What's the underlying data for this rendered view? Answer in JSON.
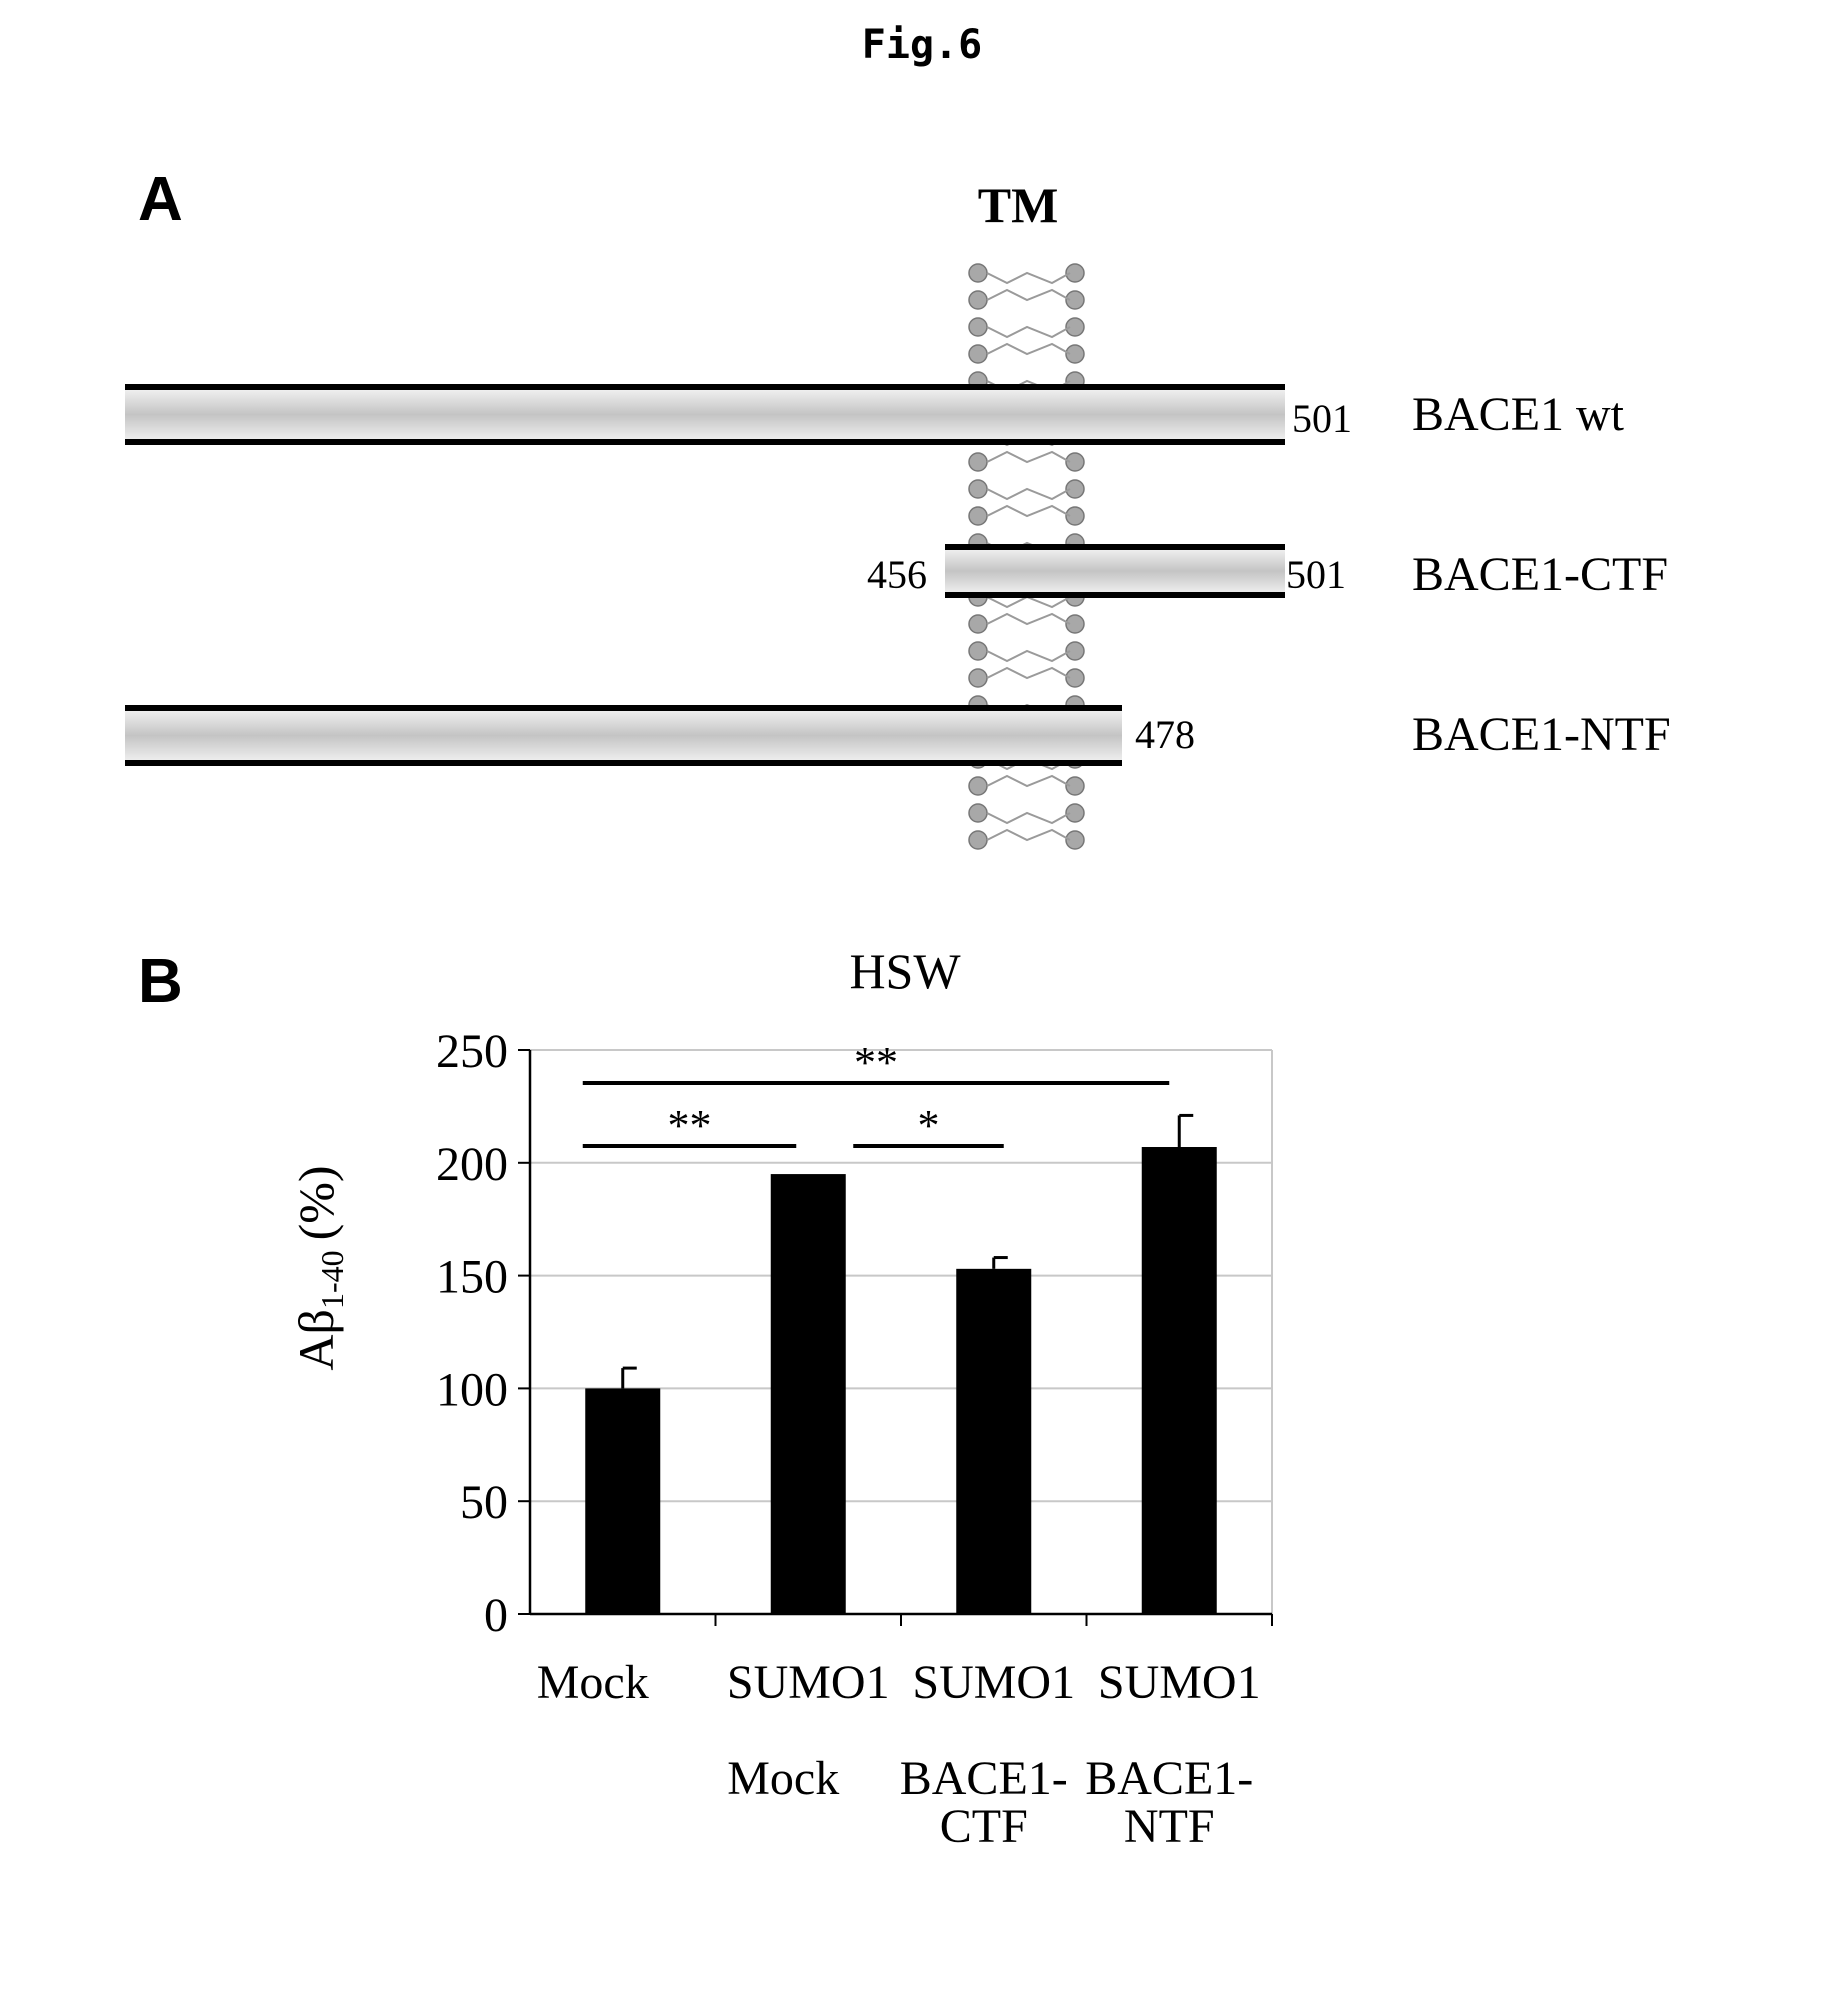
{
  "figure_title": "Fig.6",
  "panel_a": {
    "label": "A",
    "tm_label": "TM",
    "constructs": [
      {
        "name": "BACE1 wt",
        "start_label": "",
        "end_label": "501"
      },
      {
        "name": "BACE1-CTF",
        "start_label": "456",
        "end_label": "501"
      },
      {
        "name": "BACE1-NTF",
        "start_label": "",
        "end_label": "478"
      }
    ]
  },
  "panel_b": {
    "label": "B",
    "significance": [
      {
        "label": "**",
        "from": 0,
        "to": 1
      },
      {
        "label": "*",
        "from": 1,
        "to": 2
      },
      {
        "label": "**",
        "from": 0,
        "to": 3
      }
    ]
  },
  "chart_data": {
    "type": "bar",
    "title": "HSW",
    "ylabel_main": "Aβ",
    "ylabel_sub": "1-40",
    "ylabel_unit": "(%)",
    "xlabel": "",
    "categories": [
      [
        "Mock"
      ],
      [
        "SUMO1",
        "",
        "Mock"
      ],
      [
        "SUMO1",
        "",
        "BACE1-",
        "CTF"
      ],
      [
        "SUMO1",
        "",
        "BACE1-",
        "NTF"
      ]
    ],
    "values": [
      100,
      195,
      153,
      207
    ],
    "errors": [
      9,
      0,
      5,
      14
    ],
    "ylim": [
      0,
      250
    ],
    "yticks": [
      0,
      50,
      100,
      150,
      200,
      250
    ],
    "grid": true,
    "bar_color": "#000000"
  }
}
